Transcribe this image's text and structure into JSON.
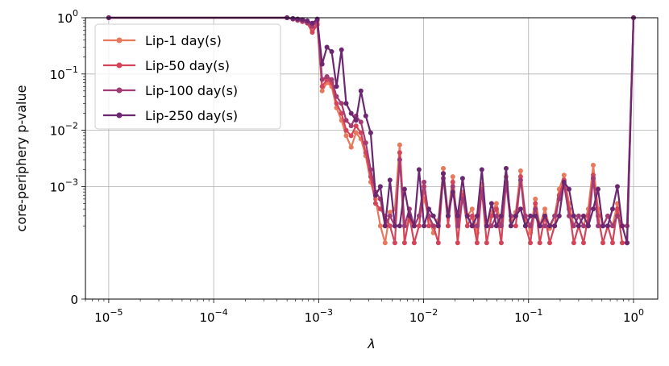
{
  "chart_data": {
    "type": "line",
    "title": "",
    "xlabel": "λ",
    "ylabel": "core-periphery p-value",
    "x_scale": "log",
    "y_scale": "symlog",
    "xlim": [
      6e-06,
      1.7
    ],
    "ylim": [
      0,
      1
    ],
    "grid": true,
    "legend_position": "top-left",
    "x_ticks": [
      {
        "value": 1e-05,
        "base": "10",
        "exp": "−5"
      },
      {
        "value": 0.0001,
        "base": "10",
        "exp": "−4"
      },
      {
        "value": 0.001,
        "base": "10",
        "exp": "−3"
      },
      {
        "value": 0.01,
        "base": "10",
        "exp": "−2"
      },
      {
        "value": 0.1,
        "base": "10",
        "exp": "−1"
      },
      {
        "value": 1,
        "base": "10",
        "exp": "0"
      }
    ],
    "y_ticks": [
      {
        "value": 0,
        "base": "0",
        "exp": ""
      },
      {
        "value": 0.001,
        "base": "10",
        "exp": "−3"
      },
      {
        "value": 0.01,
        "base": "10",
        "exp": "−2"
      },
      {
        "value": 0.1,
        "base": "10",
        "exp": "−1"
      },
      {
        "value": 1,
        "base": "10",
        "exp": "0"
      }
    ],
    "series": [
      {
        "name": "Lip-1 day(s)",
        "color": "#e8795d",
        "x": [
          1e-05,
          0.0005,
          0.00057,
          0.00063,
          0.0007,
          0.00078,
          0.00087,
          0.00097,
          0.00108,
          0.0012,
          0.00133,
          0.00148,
          0.00165,
          0.00183,
          0.00204,
          0.00227,
          0.00253,
          0.00281,
          0.00313,
          0.00348,
          0.00387,
          0.0043,
          0.00478,
          0.00532,
          0.00592,
          0.00658,
          0.00732,
          0.00814,
          0.00905,
          0.0101,
          0.0112,
          0.0124,
          0.0138,
          0.0154,
          0.0171,
          0.019,
          0.0211,
          0.0235,
          0.0261,
          0.029,
          0.0323,
          0.0359,
          0.0399,
          0.0444,
          0.0494,
          0.0549,
          0.0611,
          0.0679,
          0.0755,
          0.084,
          0.0934,
          0.104,
          0.116,
          0.128,
          0.143,
          0.159,
          0.177,
          0.196,
          0.218,
          0.243,
          0.27,
          0.3,
          0.334,
          0.371,
          0.413,
          0.459,
          0.511,
          0.568,
          0.631,
          0.702,
          0.781,
          0.868,
          1.0
        ],
        "y": [
          1,
          1,
          0.95,
          0.95,
          0.9,
          0.85,
          0.6,
          0.8,
          0.05,
          0.07,
          0.06,
          0.025,
          0.015,
          0.008,
          0.005,
          0.009,
          0.007,
          0.0035,
          0.0012,
          0.0006,
          0.0002,
          0.0001,
          0.00035,
          0.0004,
          0.0055,
          0.0002,
          0.00025,
          0.0002,
          0.0003,
          0.0006,
          0.0003,
          0.00015,
          0.00025,
          0.0021,
          0.0003,
          0.0015,
          0.0002,
          0.0008,
          0.0003,
          0.0004,
          0.00015,
          0.0011,
          0.0002,
          0.00035,
          0.0005,
          0.0002,
          0.0015,
          0.00025,
          0.00035,
          0.0019,
          0.0003,
          0.00015,
          0.0006,
          0.0002,
          0.0004,
          0.00018,
          0.0003,
          0.0009,
          0.0016,
          0.0005,
          0.0002,
          0.0003,
          0.0002,
          0.0004,
          0.0024,
          0.0004,
          0.0002,
          0.0003,
          0.0002,
          0.0005,
          0.0002,
          0.0002,
          1.0
        ]
      },
      {
        "name": "Lip-50 day(s)",
        "color": "#d5455a",
        "x": [
          1e-05,
          0.0005,
          0.00057,
          0.00063,
          0.0007,
          0.00078,
          0.00087,
          0.00097,
          0.00108,
          0.0012,
          0.00133,
          0.00148,
          0.00165,
          0.00183,
          0.00204,
          0.00227,
          0.00253,
          0.00281,
          0.00313,
          0.00348,
          0.00387,
          0.0043,
          0.00478,
          0.00532,
          0.00592,
          0.00658,
          0.00732,
          0.00814,
          0.00905,
          0.0101,
          0.0112,
          0.0124,
          0.0138,
          0.0154,
          0.0171,
          0.019,
          0.0211,
          0.0235,
          0.0261,
          0.029,
          0.0323,
          0.0359,
          0.0399,
          0.0444,
          0.0494,
          0.0549,
          0.0611,
          0.0679,
          0.0755,
          0.084,
          0.0934,
          0.104,
          0.116,
          0.128,
          0.143,
          0.159,
          0.177,
          0.196,
          0.218,
          0.243,
          0.27,
          0.3,
          0.334,
          0.371,
          0.413,
          0.459,
          0.511,
          0.568,
          0.631,
          0.702,
          0.781,
          0.868,
          1.0
        ],
        "y": [
          1,
          1,
          0.95,
          0.9,
          0.85,
          0.8,
          0.55,
          0.75,
          0.06,
          0.08,
          0.07,
          0.03,
          0.02,
          0.01,
          0.008,
          0.012,
          0.009,
          0.004,
          0.0015,
          0.0005,
          0.0004,
          0.0003,
          0.0002,
          0.0001,
          0.004,
          0.0001,
          0.0003,
          0.0001,
          0.0002,
          0.001,
          0.0002,
          0.0002,
          0.0001,
          0.0017,
          0.0002,
          0.0012,
          0.0001,
          0.0007,
          0.0002,
          0.0003,
          0.0001,
          0.0009,
          0.0001,
          0.0003,
          0.0004,
          0.0001,
          0.0012,
          0.0002,
          0.0002,
          0.0015,
          0.0002,
          0.0001,
          0.0005,
          0.0001,
          0.0003,
          0.0001,
          0.0002,
          0.0007,
          0.0013,
          0.0004,
          0.0001,
          0.0002,
          0.0001,
          0.0003,
          0.0016,
          0.0003,
          0.0001,
          0.0002,
          0.0001,
          0.0004,
          0.0001,
          0.0001,
          1.0
        ]
      },
      {
        "name": "Lip-100 day(s)",
        "color": "#a33b75",
        "x": [
          1e-05,
          0.0005,
          0.00057,
          0.00063,
          0.0007,
          0.00078,
          0.00087,
          0.00097,
          0.00108,
          0.0012,
          0.00133,
          0.00148,
          0.00165,
          0.00183,
          0.00204,
          0.00227,
          0.00253,
          0.00281,
          0.00313,
          0.00348,
          0.00387,
          0.0043,
          0.00478,
          0.00532,
          0.00592,
          0.00658,
          0.00732,
          0.00814,
          0.00905,
          0.0101,
          0.0112,
          0.0124,
          0.0138,
          0.0154,
          0.0171,
          0.019,
          0.0211,
          0.0235,
          0.0261,
          0.029,
          0.0323,
          0.0359,
          0.0399,
          0.0444,
          0.0494,
          0.0549,
          0.0611,
          0.0679,
          0.0755,
          0.084,
          0.0934,
          0.104,
          0.116,
          0.128,
          0.143,
          0.159,
          0.177,
          0.196,
          0.218,
          0.243,
          0.27,
          0.3,
          0.334,
          0.371,
          0.413,
          0.459,
          0.511,
          0.568,
          0.631,
          0.702,
          0.781,
          0.868,
          1.0
        ],
        "y": [
          1,
          1,
          0.95,
          0.92,
          0.88,
          0.82,
          0.7,
          0.9,
          0.08,
          0.09,
          0.08,
          0.04,
          0.03,
          0.015,
          0.012,
          0.018,
          0.014,
          0.006,
          0.002,
          0.0008,
          0.0006,
          0.0002,
          0.0003,
          0.0002,
          0.003,
          0.0002,
          0.0004,
          0.0002,
          0.0003,
          0.0012,
          0.0003,
          0.0002,
          0.0002,
          0.0014,
          0.0003,
          0.001,
          0.0002,
          0.0006,
          0.0003,
          0.0002,
          0.0002,
          0.0008,
          0.0002,
          0.0002,
          0.0003,
          0.0002,
          0.0011,
          0.0003,
          0.0003,
          0.0013,
          0.0003,
          0.0002,
          0.0004,
          0.0002,
          0.0002,
          0.0002,
          0.0003,
          0.0006,
          0.0011,
          0.0003,
          0.0002,
          0.0003,
          0.0002,
          0.0002,
          0.0014,
          0.0002,
          0.0002,
          0.0003,
          0.0002,
          0.0003,
          0.0002,
          0.0002,
          1.0
        ]
      },
      {
        "name": "Lip-250 day(s)",
        "color": "#6b2770",
        "x": [
          1e-05,
          0.0005,
          0.00057,
          0.00063,
          0.0007,
          0.00078,
          0.00087,
          0.00097,
          0.00108,
          0.0012,
          0.00133,
          0.00148,
          0.00165,
          0.00183,
          0.00204,
          0.00227,
          0.00253,
          0.00281,
          0.00313,
          0.00348,
          0.00387,
          0.0043,
          0.00478,
          0.00532,
          0.00592,
          0.00658,
          0.00732,
          0.00814,
          0.00905,
          0.0101,
          0.0112,
          0.0124,
          0.0138,
          0.0154,
          0.0171,
          0.019,
          0.0211,
          0.0235,
          0.0261,
          0.029,
          0.0323,
          0.0359,
          0.0399,
          0.0444,
          0.0494,
          0.0549,
          0.0611,
          0.0679,
          0.0755,
          0.084,
          0.0934,
          0.104,
          0.116,
          0.128,
          0.143,
          0.159,
          0.177,
          0.196,
          0.218,
          0.243,
          0.27,
          0.3,
          0.334,
          0.371,
          0.413,
          0.459,
          0.511,
          0.568,
          0.631,
          0.702,
          0.781,
          0.868,
          1.0
        ],
        "y": [
          1,
          1,
          0.97,
          0.95,
          0.93,
          0.88,
          0.8,
          0.95,
          0.15,
          0.3,
          0.25,
          0.06,
          0.27,
          0.03,
          0.02,
          0.015,
          0.05,
          0.018,
          0.009,
          0.0007,
          0.001,
          0.0002,
          0.0013,
          0.0002,
          0.0002,
          0.0009,
          0.0003,
          0.0002,
          0.002,
          0.0002,
          0.0004,
          0.0003,
          0.0002,
          0.0017,
          0.0003,
          0.0008,
          0.0003,
          0.0014,
          0.0003,
          0.0002,
          0.0003,
          0.002,
          0.0002,
          0.0005,
          0.0002,
          0.0003,
          0.0021,
          0.0002,
          0.0003,
          0.0004,
          0.0002,
          0.0003,
          0.0003,
          0.0002,
          0.0003,
          0.0002,
          0.0002,
          0.0003,
          0.0012,
          0.0009,
          0.0003,
          0.0002,
          0.0003,
          0.0002,
          0.0004,
          0.0009,
          0.0002,
          0.0002,
          0.0004,
          0.001,
          0.0002,
          0.0001,
          1.0
        ]
      }
    ]
  }
}
